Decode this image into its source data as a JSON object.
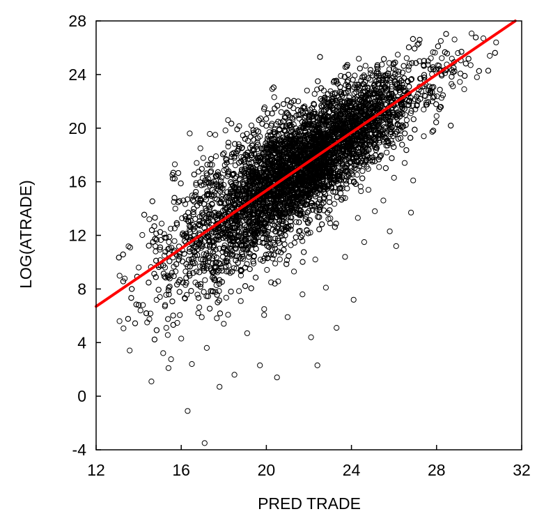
{
  "chart_data": {
    "type": "scatter",
    "title": "",
    "xlabel": "PRED  TRADE",
    "ylabel": "LOG(ATRADE)",
    "xlim": [
      12,
      32
    ],
    "ylim": [
      -4,
      28
    ],
    "x_ticks": [
      12,
      16,
      20,
      24,
      28,
      32
    ],
    "y_ticks": [
      -4,
      0,
      4,
      8,
      12,
      16,
      20,
      24,
      28
    ],
    "grid": false,
    "legend": "none",
    "marker": "open-circle",
    "marker_color": "#000000",
    "fit_line": {
      "color": "#ff0000",
      "x": [
        12,
        31.7
      ],
      "y": [
        6.7,
        28
      ]
    },
    "series": [
      {
        "values_note": "",
        "points": [
          [
            13.1,
            5.6
          ],
          [
            13.6,
            11.1
          ],
          [
            14.0,
            9.6
          ],
          [
            14.2,
            6.8
          ],
          [
            14.4,
            5.5
          ],
          [
            14.5,
            13.2
          ],
          [
            14.6,
            1.1
          ],
          [
            14.8,
            10.8
          ],
          [
            15.0,
            7.4
          ],
          [
            15.2,
            12.1
          ],
          [
            15.3,
            5.1
          ],
          [
            15.4,
            2.1
          ],
          [
            15.5,
            9.0
          ],
          [
            15.7,
            17.3
          ],
          [
            15.8,
            12.8
          ],
          [
            16.0,
            4.3
          ],
          [
            16.1,
            14.6
          ],
          [
            16.2,
            8.3
          ],
          [
            16.3,
            -1.1
          ],
          [
            16.4,
            19.6
          ],
          [
            16.5,
            2.4
          ],
          [
            16.6,
            11.2
          ],
          [
            16.7,
            15.9
          ],
          [
            16.8,
            6.2
          ],
          [
            16.9,
            18.5
          ],
          [
            17.0,
            9.7
          ],
          [
            17.1,
            -3.5
          ],
          [
            17.2,
            3.6
          ],
          [
            17.3,
            13.4
          ],
          [
            17.4,
            16.8
          ],
          [
            17.5,
            7.8
          ],
          [
            17.6,
            19.5
          ],
          [
            17.7,
            11.9
          ],
          [
            17.8,
            0.7
          ],
          [
            17.9,
            14.9
          ],
          [
            18.0,
            5.4
          ],
          [
            18.1,
            17.7
          ],
          [
            18.2,
            20.6
          ],
          [
            18.3,
            9.2
          ],
          [
            18.4,
            12.6
          ],
          [
            18.5,
            1.6
          ],
          [
            18.6,
            15.3
          ],
          [
            18.7,
            18.8
          ],
          [
            18.8,
            7.1
          ],
          [
            18.9,
            11.0
          ],
          [
            19.0,
            13.9
          ],
          [
            19.1,
            4.7
          ],
          [
            19.2,
            16.4
          ],
          [
            19.3,
            20.2
          ],
          [
            19.4,
            9.9
          ],
          [
            19.5,
            12.2
          ],
          [
            19.6,
            15.0
          ],
          [
            19.7,
            2.3
          ],
          [
            19.8,
            17.9
          ],
          [
            19.9,
            6.5
          ],
          [
            20.0,
            14.1
          ],
          [
            20.1,
            10.6
          ],
          [
            20.2,
            19.4
          ],
          [
            20.3,
            16.2
          ],
          [
            20.4,
            8.4
          ],
          [
            20.5,
            1.4
          ],
          [
            20.6,
            13.5
          ],
          [
            20.7,
            21.2
          ],
          [
            20.8,
            11.7
          ],
          [
            20.9,
            17.0
          ],
          [
            21.0,
            5.9
          ],
          [
            21.1,
            15.6
          ],
          [
            21.2,
            19.9
          ],
          [
            21.3,
            9.3
          ],
          [
            21.4,
            13.0
          ],
          [
            21.5,
            22.0
          ],
          [
            21.6,
            16.9
          ],
          [
            21.7,
            7.6
          ],
          [
            21.8,
            18.4
          ],
          [
            21.9,
            12.4
          ],
          [
            22.0,
            20.8
          ],
          [
            22.1,
            4.4
          ],
          [
            22.2,
            15.8
          ],
          [
            22.3,
            10.2
          ],
          [
            22.4,
            2.3
          ],
          [
            22.5,
            19.2
          ],
          [
            22.6,
            14.3
          ],
          [
            22.7,
            22.8
          ],
          [
            22.8,
            8.1
          ],
          [
            22.9,
            17.5
          ],
          [
            23.0,
            12.9
          ],
          [
            23.1,
            21.5
          ],
          [
            23.2,
            16.1
          ],
          [
            23.3,
            5.1
          ],
          [
            23.4,
            19.7
          ],
          [
            23.5,
            23.9
          ],
          [
            23.6,
            14.8
          ],
          [
            23.7,
            10.4
          ],
          [
            23.8,
            18.2
          ],
          [
            23.9,
            22.3
          ],
          [
            24.0,
            16.6
          ],
          [
            24.1,
            7.2
          ],
          [
            24.2,
            20.4
          ],
          [
            24.3,
            13.3
          ],
          [
            24.4,
            23.0
          ],
          [
            24.5,
            17.8
          ],
          [
            24.6,
            11.5
          ],
          [
            24.7,
            21.8
          ],
          [
            24.8,
            15.4
          ],
          [
            24.9,
            24.1
          ],
          [
            25.0,
            19.3
          ],
          [
            25.1,
            13.8
          ],
          [
            25.2,
            22.6
          ],
          [
            25.3,
            17.1
          ],
          [
            25.4,
            20.9
          ],
          [
            25.5,
            14.6
          ],
          [
            25.6,
            23.4
          ],
          [
            25.7,
            18.7
          ],
          [
            25.8,
            12.3
          ],
          [
            25.9,
            21.9
          ],
          [
            26.0,
            16.3
          ],
          [
            26.1,
            11.2
          ],
          [
            26.2,
            24.0
          ],
          [
            26.3,
            19.8
          ],
          [
            26.4,
            22.4
          ],
          [
            26.5,
            17.4
          ],
          [
            26.6,
            20.6
          ],
          [
            26.7,
            24.6
          ],
          [
            26.8,
            13.7
          ],
          [
            26.9,
            16.1
          ],
          [
            27.0,
            21.4
          ],
          [
            27.2,
            23.1
          ],
          [
            27.4,
            19.4
          ],
          [
            27.6,
            25.0
          ],
          [
            27.8,
            22.0
          ],
          [
            28.0,
            20.9
          ],
          [
            28.2,
            26.5
          ],
          [
            28.4,
            24.1
          ],
          [
            28.7,
            23.3
          ],
          [
            29.0,
            25.6
          ],
          [
            29.3,
            22.9
          ],
          [
            29.6,
            24.7
          ],
          [
            29.9,
            23.8
          ],
          [
            30.2,
            26.7
          ],
          [
            30.5,
            25.4
          ],
          [
            30.8,
            26.4
          ]
        ]
      }
    ]
  }
}
